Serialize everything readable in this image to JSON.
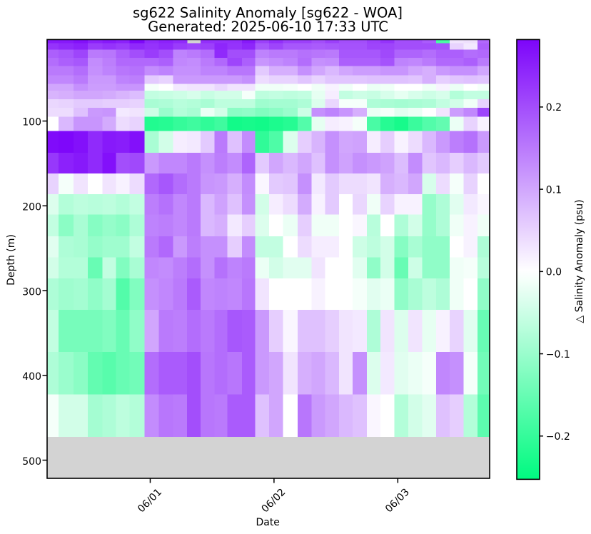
{
  "figure": {
    "title": "sg622 Salinity Anomaly [sg622 - WOA]",
    "subtitle": "Generated: 2025-06-10 17:33 UTC",
    "background_color": "#ffffff"
  },
  "chart_data": {
    "type": "heatmap",
    "title": "sg622 Salinity Anomaly [sg622 - WOA]",
    "subtitle": "Generated: 2025-06-10 17:33 UTC",
    "xlabel": "Date",
    "ylabel": "Depth (m)",
    "x_tick_labels": [
      "06/01",
      "06/02",
      "06/03"
    ],
    "x_tick_positions_days": [
      0,
      1,
      2
    ],
    "x_tick_rotation_deg": 45,
    "y_tick_labels": [
      "100",
      "200",
      "300",
      "400",
      "500"
    ],
    "y_tick_positions_m": [
      100,
      200,
      300,
      400,
      500
    ],
    "xlim_days": [
      -0.833,
      2.742
    ],
    "ylim_m": [
      3.9,
      521.4
    ],
    "y_axis_inverted": true,
    "grid": false,
    "plot_background_color": "#d3d3d3",
    "missing_value_color": "#d3d3d3",
    "colorbar": {
      "label": "△ Salinity Anomaly (psu)",
      "tick_labels": [
        "0.2",
        "0.1",
        "0.0",
        "−0.1",
        "−0.2"
      ],
      "tick_values": [
        0.2,
        0.1,
        0.0,
        -0.1,
        -0.2
      ],
      "vmin": -0.2526,
      "vmax": 0.282,
      "cmap_stops": [
        {
          "value": -0.2526,
          "color": "#00fa80"
        },
        {
          "value": 0.0,
          "color": "#ffffff"
        },
        {
          "value": 0.282,
          "color": "#7d05fa"
        }
      ]
    },
    "x_edges_days": [
      -0.833,
      -0.74,
      -0.621,
      -0.504,
      -0.387,
      -0.276,
      -0.168,
      -0.047,
      0.068,
      0.184,
      0.297,
      0.407,
      0.518,
      0.624,
      0.741,
      0.849,
      0.959,
      1.073,
      1.19,
      1.302,
      1.413,
      1.524,
      1.636,
      1.75,
      1.859,
      1.971,
      2.084,
      2.196,
      2.31,
      2.419,
      2.531,
      2.645,
      2.742
    ],
    "depth_edges_m": [
      3.9,
      8.1,
      15.9,
      25.3,
      35.3,
      46.0,
      56.0,
      64.0,
      74.3,
      84.6,
      94.9,
      111.9,
      137.4,
      161.8,
      186.3,
      210.3,
      236.0,
      261.0,
      285.8,
      322.8,
      372.3,
      422.5,
      472.3
    ],
    "values": [
      [
        0.26,
        0.26,
        0.27,
        0.25,
        0.26,
        0.25,
        0.28,
        0.24,
        0.25,
        0.24,
        null,
        0.235,
        0.235,
        0.235,
        0.26,
        0.215,
        0.235,
        0.215,
        0.215,
        0.2,
        0.215,
        0.2,
        0.2,
        0.215,
        0.23,
        0.2,
        0.2,
        0.185,
        -0.18,
        0.03,
        0.035,
        0.17
      ],
      [
        0.23,
        0.24,
        0.25,
        0.22,
        0.23,
        0.22,
        0.24,
        0.23,
        0.24,
        0.22,
        0.21,
        0.215,
        0.245,
        0.23,
        0.245,
        0.19,
        0.21,
        0.19,
        0.19,
        0.185,
        0.19,
        0.195,
        0.195,
        0.21,
        0.21,
        0.2,
        0.2,
        0.2,
        0.195,
        0.05,
        0.025,
        0.18
      ],
      [
        0.18,
        0.19,
        0.21,
        0.15,
        0.155,
        0.18,
        0.2,
        0.22,
        0.2,
        0.14,
        0.15,
        0.165,
        0.24,
        0.2,
        0.2,
        0.14,
        0.15,
        0.15,
        0.16,
        0.155,
        0.15,
        0.19,
        0.19,
        0.19,
        0.205,
        0.175,
        0.175,
        0.165,
        0.18,
        0.18,
        0.165,
        0.17
      ],
      [
        0.165,
        0.18,
        0.19,
        0.13,
        0.145,
        0.17,
        0.17,
        0.17,
        0.18,
        0.135,
        0.13,
        0.15,
        0.17,
        0.21,
        0.18,
        0.12,
        0.13,
        0.14,
        0.165,
        0.125,
        0.13,
        0.18,
        0.18,
        0.18,
        0.195,
        0.14,
        0.135,
        0.15,
        0.17,
        0.17,
        0.18,
        0.15
      ],
      [
        0.15,
        0.15,
        0.165,
        0.125,
        0.14,
        0.155,
        0.16,
        0.13,
        0.14,
        0.125,
        0.125,
        0.14,
        0.14,
        0.155,
        0.155,
        0.06,
        0.09,
        0.09,
        0.125,
        0.1,
        0.08,
        0.1,
        0.11,
        0.11,
        0.12,
        0.12,
        0.1,
        0.09,
        0.115,
        0.125,
        0.125,
        0.1
      ],
      [
        0.135,
        0.135,
        0.15,
        0.115,
        0.115,
        0.14,
        0.145,
        0.06,
        0.05,
        0.115,
        0.115,
        0.115,
        0.115,
        0.115,
        0.125,
        0.04,
        0.05,
        0.05,
        0.065,
        0.05,
        0.065,
        0.065,
        0.065,
        0.07,
        0.07,
        0.07,
        0.065,
        0.09,
        0.055,
        0.065,
        0.07,
        0.065
      ],
      [
        0.1,
        0.1,
        0.125,
        0.11,
        0.11,
        0.12,
        0.12,
        -0.01,
        0.0,
        0.025,
        0.03,
        0.03,
        0.045,
        0.03,
        0.03,
        -0.015,
        -0.015,
        -0.01,
        0.0,
        -0.015,
        0.015,
        -0.015,
        0.0,
        -0.02,
        -0.015,
        0.0,
        0.0,
        -0.015,
        0.015,
        -0.02,
        0.0,
        -0.01
      ],
      [
        0.085,
        0.09,
        0.1,
        0.1,
        0.095,
        0.085,
        0.075,
        -0.06,
        -0.055,
        -0.05,
        -0.04,
        -0.055,
        -0.045,
        -0.045,
        -0.01,
        -0.065,
        -0.06,
        -0.065,
        -0.06,
        -0.025,
        0.02,
        -0.06,
        -0.05,
        -0.055,
        -0.04,
        -0.025,
        -0.04,
        -0.05,
        -0.04,
        -0.075,
        -0.06,
        -0.06
      ],
      [
        0.045,
        0.05,
        0.06,
        0.06,
        0.055,
        0.055,
        0.05,
        -0.085,
        -0.08,
        -0.07,
        -0.075,
        -0.085,
        -0.065,
        -0.065,
        -0.065,
        -0.095,
        -0.09,
        -0.09,
        -0.08,
        -0.035,
        0.045,
        -0.01,
        -0.01,
        -0.08,
        -0.085,
        -0.09,
        -0.085,
        -0.08,
        -0.06,
        -0.045,
        -0.015,
        0.05
      ],
      [
        0.04,
        0.04,
        0.07,
        0.115,
        0.12,
        0.025,
        0.03,
        -0.05,
        -0.1,
        -0.075,
        -0.085,
        -0.02,
        -0.045,
        -0.115,
        -0.11,
        -0.125,
        -0.115,
        -0.1,
        -0.05,
        0.125,
        0.14,
        0.12,
        0.09,
        -0.02,
        -0.01,
        -0.03,
        -0.02,
        0.0,
        0.03,
        0.11,
        0.135,
        0.21
      ],
      [
        0.0,
        0.08,
        0.12,
        0.12,
        0.095,
        0.04,
        0.05,
        -0.22,
        -0.215,
        -0.2,
        -0.19,
        -0.205,
        -0.19,
        -0.235,
        -0.23,
        -0.235,
        -0.225,
        -0.215,
        -0.17,
        -0.025,
        0.02,
        0.015,
        -0.01,
        -0.18,
        -0.215,
        -0.23,
        -0.195,
        -0.17,
        -0.155,
        -0.02,
        0.05,
        0.015
      ],
      [
        0.275,
        0.28,
        0.27,
        0.24,
        0.26,
        0.255,
        0.27,
        -0.085,
        -0.045,
        0.02,
        0.025,
        0.06,
        0.15,
        0.07,
        0.13,
        -0.205,
        -0.175,
        -0.035,
        0.055,
        0.085,
        0.125,
        0.1,
        0.105,
        0.02,
        0.055,
        0.015,
        0.04,
        0.08,
        0.115,
        0.145,
        0.16,
        0.115
      ],
      [
        0.225,
        0.25,
        0.26,
        0.24,
        0.27,
        0.2,
        0.205,
        0.115,
        0.135,
        0.135,
        0.15,
        0.125,
        0.145,
        0.13,
        0.175,
        0.06,
        0.1,
        0.08,
        0.1,
        0.07,
        0.125,
        0.105,
        0.125,
        0.115,
        0.105,
        0.075,
        0.13,
        0.065,
        0.08,
        0.055,
        0.08,
        0.06
      ],
      [
        0.05,
        -0.01,
        0.03,
        0.0,
        0.03,
        0.015,
        0.04,
        0.17,
        0.19,
        0.165,
        0.15,
        0.12,
        0.115,
        0.09,
        0.13,
        0.01,
        0.06,
        0.065,
        0.125,
        0.025,
        0.06,
        0.04,
        0.04,
        0.03,
        0.09,
        0.08,
        0.1,
        -0.04,
        0.04,
        -0.01,
        0.05,
        0.0
      ],
      [
        -0.035,
        -0.075,
        -0.065,
        -0.07,
        -0.065,
        -0.075,
        -0.06,
        0.145,
        0.16,
        0.135,
        0.15,
        0.08,
        0.105,
        0.07,
        0.125,
        -0.045,
        0.02,
        0.04,
        0.095,
        0.015,
        0.06,
        0.0,
        0.045,
        -0.015,
        0.05,
        0.015,
        0.015,
        -0.105,
        -0.08,
        -0.03,
        0.025,
        0.01
      ],
      [
        -0.06,
        -0.115,
        -0.085,
        -0.12,
        -0.105,
        -0.115,
        -0.08,
        0.14,
        0.145,
        0.135,
        0.15,
        0.08,
        0.09,
        0.025,
        0.055,
        -0.035,
        0.0,
        -0.02,
        0.055,
        -0.015,
        -0.015,
        0.0,
        0.01,
        -0.07,
        0.0,
        -0.08,
        -0.045,
        -0.105,
        -0.08,
        -0.015,
        0.015,
        -0.015
      ],
      [
        -0.03,
        -0.08,
        -0.085,
        -0.105,
        -0.095,
        -0.095,
        -0.06,
        0.15,
        0.17,
        0.115,
        0.145,
        0.125,
        0.125,
        0.055,
        0.13,
        -0.06,
        -0.06,
        0.0,
        0.04,
        0.02,
        0.02,
        0.0,
        -0.05,
        -0.065,
        -0.045,
        -0.12,
        -0.085,
        -0.11,
        -0.11,
        0.0,
        0.015,
        -0.08
      ],
      [
        -0.045,
        -0.075,
        -0.075,
        -0.15,
        -0.06,
        -0.125,
        -0.085,
        0.135,
        0.13,
        0.145,
        0.165,
        0.125,
        0.16,
        0.14,
        0.15,
        -0.02,
        -0.045,
        -0.03,
        -0.03,
        0.03,
        0.0,
        0.0,
        -0.03,
        -0.11,
        -0.045,
        -0.15,
        -0.05,
        -0.11,
        -0.11,
        -0.015,
        -0.01,
        -0.07
      ],
      [
        -0.08,
        -0.095,
        -0.09,
        -0.11,
        -0.09,
        -0.17,
        -0.125,
        0.125,
        0.135,
        0.15,
        0.185,
        0.135,
        0.14,
        0.135,
        0.155,
        0.03,
        0.0,
        0.0,
        0.0,
        0.015,
        0.0,
        0.0,
        -0.01,
        -0.03,
        -0.02,
        -0.11,
        -0.085,
        -0.065,
        -0.08,
        -0.015,
        0.0,
        -0.11
      ],
      [
        -0.06,
        -0.135,
        -0.135,
        -0.135,
        -0.125,
        -0.15,
        -0.11,
        0.1,
        0.15,
        0.145,
        0.165,
        0.15,
        0.165,
        0.19,
        0.185,
        0.115,
        0.055,
        0.01,
        0.07,
        0.07,
        0.055,
        0.03,
        0.025,
        -0.08,
        0.03,
        -0.035,
        0.03,
        -0.025,
        0.015,
        0.05,
        -0.03,
        -0.15
      ],
      [
        -0.08,
        -0.1,
        -0.115,
        -0.155,
        -0.165,
        -0.15,
        -0.14,
        0.165,
        0.185,
        0.185,
        0.2,
        0.155,
        0.165,
        0.155,
        0.185,
        0.115,
        0.1,
        0.03,
        0.09,
        0.1,
        0.08,
        0.03,
        0.125,
        -0.035,
        0.025,
        -0.03,
        -0.02,
        -0.01,
        0.135,
        0.125,
        -0.01,
        -0.14
      ],
      [
        -0.01,
        -0.045,
        -0.045,
        -0.09,
        -0.08,
        -0.065,
        -0.075,
        0.13,
        0.155,
        0.15,
        0.2,
        0.155,
        0.15,
        0.185,
        0.185,
        0.07,
        0.1,
        0.0,
        0.155,
        0.115,
        0.1,
        0.08,
        0.07,
        0.01,
        0.0,
        -0.075,
        -0.045,
        -0.03,
        0.07,
        0.055,
        -0.075,
        -0.16
      ]
    ]
  }
}
